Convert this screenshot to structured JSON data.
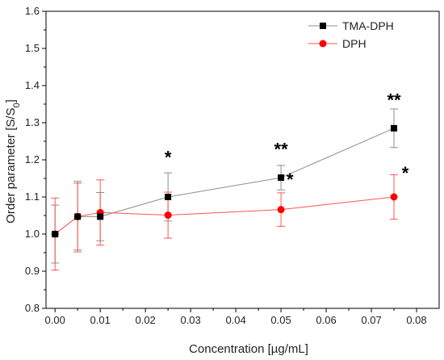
{
  "chart_data": {
    "type": "line",
    "title": "",
    "xlabel": "Concentration [µg/mL]",
    "ylabel": "Order parameter [S/S",
    "ylabel_sub": "0",
    "ylabel_close": "]",
    "xlim": [
      -0.002,
      0.085
    ],
    "ylim": [
      0.8,
      1.6
    ],
    "xticks": [
      "0.00",
      "0.01",
      "0.02",
      "0.03",
      "0.04",
      "0.05",
      "0.06",
      "0.07",
      "0.08"
    ],
    "yticks": [
      "0.8",
      "0.9",
      "1.0",
      "1.1",
      "1.2",
      "1.3",
      "1.4",
      "1.5",
      "1.6"
    ],
    "grid": false,
    "legend_position": "top-right",
    "series": [
      {
        "name": "TMA-DPH",
        "color": "#000000",
        "line_color": "#8c8c8c",
        "marker": "square",
        "x": [
          0.0,
          0.005,
          0.01,
          0.025,
          0.05,
          0.075
        ],
        "y": [
          1.0,
          1.047,
          1.047,
          1.1,
          1.152,
          1.285
        ],
        "err": [
          0.078,
          0.095,
          0.065,
          0.065,
          0.033,
          0.052
        ]
      },
      {
        "name": "DPH",
        "color": "#ff0000",
        "line_color": "#ff5555",
        "marker": "circle",
        "x": [
          0.0,
          0.005,
          0.01,
          0.025,
          0.05,
          0.075
        ],
        "y": [
          1.0,
          1.047,
          1.058,
          1.051,
          1.066,
          1.1
        ],
        "err": [
          0.097,
          0.09,
          0.088,
          0.062,
          0.045,
          0.06
        ]
      }
    ],
    "annotations": [
      {
        "text": "*",
        "x": 0.025,
        "y": 1.19
      },
      {
        "text": "**",
        "x": 0.05,
        "y": 1.212
      },
      {
        "text": "*",
        "x": 0.052,
        "y": 1.13
      },
      {
        "text": "**",
        "x": 0.075,
        "y": 1.345
      },
      {
        "text": "*",
        "x": 0.0775,
        "y": 1.148
      }
    ]
  }
}
